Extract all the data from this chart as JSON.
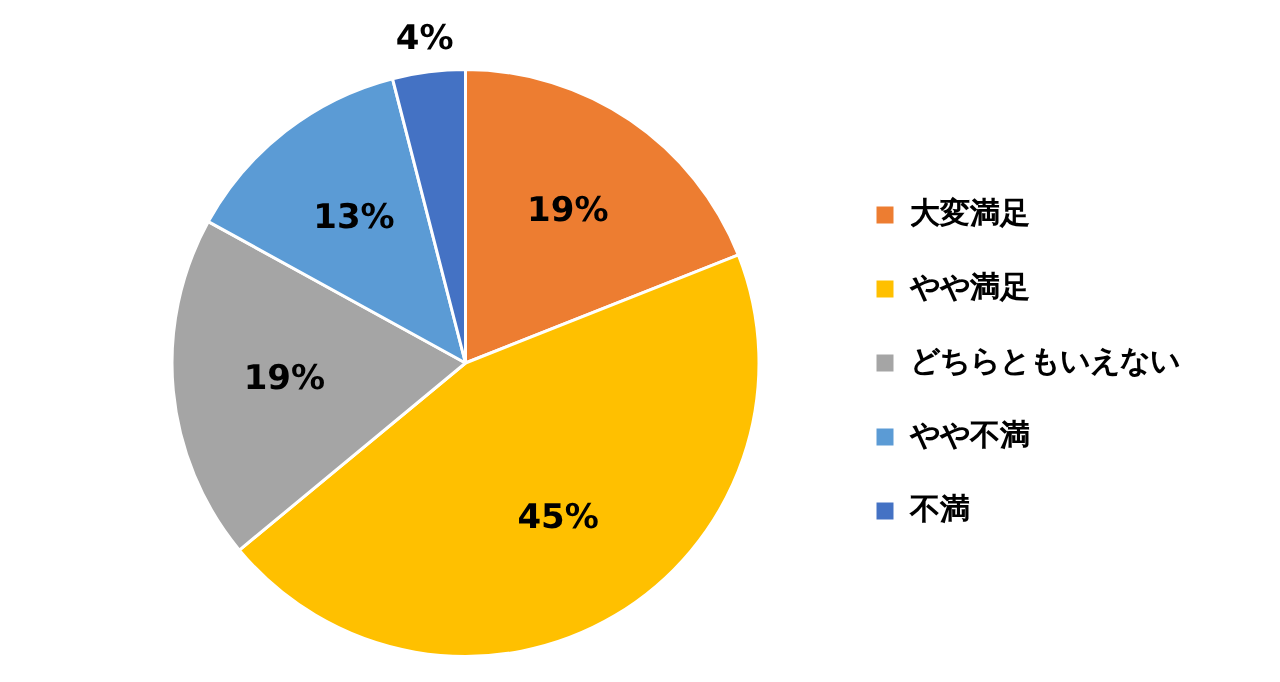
{
  "chart_data": {
    "type": "pie",
    "categories": [
      "大変満足",
      "やや満足",
      "どちらともいえない",
      "やや不満",
      "不満"
    ],
    "values": [
      19,
      45,
      19,
      13,
      4
    ],
    "colors": [
      "#ed7d31",
      "#ffc000",
      "#a5a5a5",
      "#5b9bd5",
      "#4472c4"
    ],
    "value_labels": [
      "19%",
      "45%",
      "19%",
      "13%",
      "4%"
    ],
    "legend": "right"
  }
}
